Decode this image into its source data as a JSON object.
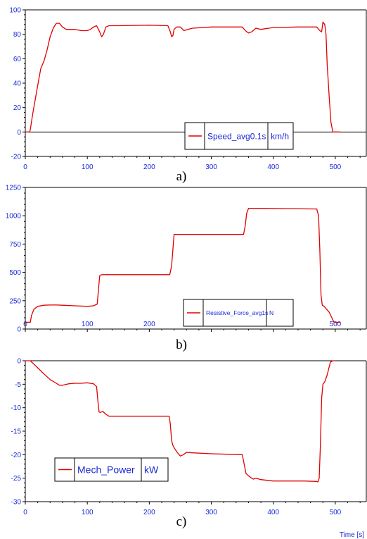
{
  "colors": {
    "series": "#e00000",
    "tick_text": "#1a2ad6",
    "axis": "#000000",
    "background": "#ffffff"
  },
  "chart_data": [
    {
      "type": "line",
      "panel_label": "a)",
      "xlim": [
        0,
        550
      ],
      "ylim": [
        -20,
        100
      ],
      "x_ticks": [
        0,
        100,
        200,
        300,
        400,
        500
      ],
      "y_ticks": [
        -20,
        0,
        20,
        40,
        60,
        80,
        100
      ],
      "zero_line": true,
      "legend": {
        "placement": "bottom-center",
        "name": "Speed_avg0.1s",
        "unit": "km/h"
      },
      "series": [
        {
          "name": "Speed_avg0.1s",
          "x": [
            0,
            7,
            8,
            12,
            20,
            25,
            30,
            35,
            40,
            45,
            50,
            55,
            60,
            66,
            72,
            80,
            90,
            100,
            105,
            110,
            115,
            120,
            123,
            126,
            130,
            135,
            140,
            150,
            200,
            230,
            234,
            236,
            238,
            240,
            244,
            250,
            256,
            262,
            270,
            300,
            340,
            350,
            355,
            360,
            365,
            372,
            380,
            400,
            440,
            470,
            475,
            478,
            480,
            483,
            485,
            487,
            490,
            493,
            496,
            500,
            508
          ],
          "y": [
            0,
            0,
            2,
            15,
            38,
            52,
            58,
            67,
            78,
            85,
            89,
            89,
            86,
            84,
            84,
            84,
            83,
            83,
            84,
            86,
            87,
            82,
            78,
            80,
            86,
            87,
            87,
            87,
            87.5,
            87,
            82,
            78,
            79,
            84,
            86,
            86,
            83,
            84,
            85,
            86,
            86,
            86,
            83,
            81,
            82,
            85,
            84,
            85.5,
            86,
            86,
            83,
            82,
            90,
            88,
            80,
            55,
            30,
            8,
            0,
            0,
            0
          ]
        }
      ]
    },
    {
      "type": "line",
      "panel_label": "b)",
      "xlim": [
        0,
        550
      ],
      "ylim": [
        0,
        1250
      ],
      "x_ticks": [
        0,
        100,
        200,
        300,
        400,
        500
      ],
      "y_ticks": [
        0,
        250,
        500,
        750,
        1000,
        1250
      ],
      "zero_line": false,
      "legend": {
        "placement": "bottom-center",
        "name": "Resistive_Force_avg1s",
        "unit": "N"
      },
      "series": [
        {
          "name": "Resistive_Force_avg1s",
          "x": [
            0,
            8,
            10,
            14,
            20,
            30,
            40,
            50,
            60,
            80,
            100,
            110,
            116,
            118,
            120,
            122,
            125,
            150,
            200,
            233,
            236,
            238,
            240,
            245,
            300,
            352,
            355,
            357,
            360,
            380,
            420,
            470,
            473,
            475,
            477,
            479,
            482,
            490,
            498,
            508
          ],
          "y": [
            60,
            60,
            120,
            175,
            200,
            210,
            212,
            212,
            210,
            205,
            200,
            205,
            220,
            350,
            470,
            478,
            480,
            480,
            480,
            480,
            560,
            700,
            835,
            835,
            835,
            835,
            920,
            1020,
            1065,
            1065,
            1063,
            1060,
            1000,
            700,
            300,
            210,
            200,
            150,
            60,
            60
          ]
        }
      ]
    },
    {
      "type": "line",
      "panel_label": "c)",
      "xlim": [
        0,
        550
      ],
      "ylim": [
        -30,
        0
      ],
      "x_ticks": [
        0,
        100,
        200,
        300,
        400,
        500
      ],
      "y_ticks": [
        -30,
        -25,
        -20,
        -15,
        -10,
        -5,
        0
      ],
      "zero_line": false,
      "x_axis_title": "Time [s]",
      "legend": {
        "placement": "bottom-left",
        "name": "Mech_Power",
        "unit": "kW"
      },
      "series": [
        {
          "name": "Mech_Power",
          "x": [
            0,
            8,
            12,
            20,
            30,
            40,
            50,
            55,
            60,
            70,
            80,
            90,
            100,
            110,
            115,
            117,
            119,
            121,
            125,
            130,
            135,
            140,
            150,
            200,
            232,
            234,
            236,
            238,
            240,
            245,
            250,
            255,
            260,
            270,
            300,
            350,
            353,
            356,
            360,
            365,
            368,
            372,
            380,
            400,
            450,
            470,
            472,
            474,
            476,
            478,
            480,
            483,
            487,
            492,
            496,
            500
          ],
          "y": [
            0,
            0,
            -0.5,
            -1.5,
            -2.8,
            -4.0,
            -4.8,
            -5.2,
            -5.2,
            -4.9,
            -4.8,
            -4.8,
            -4.7,
            -4.9,
            -5.5,
            -8.5,
            -10.9,
            -11.0,
            -10.8,
            -11.4,
            -11.8,
            -11.8,
            -11.8,
            -11.8,
            -11.8,
            -13.5,
            -17.0,
            -18.0,
            -18.5,
            -19.5,
            -20.3,
            -20.0,
            -19.5,
            -19.6,
            -19.8,
            -20.0,
            -22.0,
            -24.0,
            -24.5,
            -25.0,
            -25.2,
            -25.0,
            -25.3,
            -25.6,
            -25.6,
            -25.7,
            -25.8,
            -25.0,
            -18.0,
            -8.0,
            -5.0,
            -4.5,
            -3.0,
            -0.3,
            0,
            0
          ]
        }
      ]
    }
  ]
}
